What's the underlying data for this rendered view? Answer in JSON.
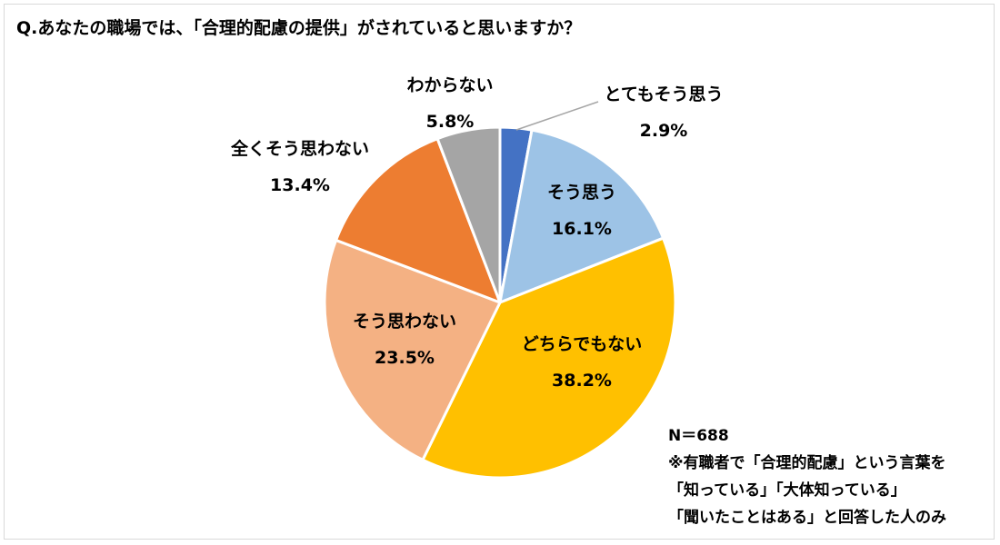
{
  "title": "Q.あなたの職場では、「合理的配慮の提供」がされていると思いますか？",
  "chart_data": {
    "type": "pie",
    "title": "Q.あなたの職場では、「合理的配慮の提供」がされていると思いますか？",
    "slices": [
      {
        "label": "とてもそう思う",
        "value": 2.9,
        "value_label": "2.9%",
        "color": "#4472C4"
      },
      {
        "label": "そう思う",
        "value": 16.1,
        "value_label": "16.1%",
        "color": "#9DC3E6"
      },
      {
        "label": "どちらでもない",
        "value": 38.2,
        "value_label": "38.2%",
        "color": "#FFC000"
      },
      {
        "label": "そう思わない",
        "value": 23.5,
        "value_label": "23.5%",
        "color": "#F4B183"
      },
      {
        "label": "全くそう思わない",
        "value": 13.4,
        "value_label": "13.4%",
        "color": "#ED7D31"
      },
      {
        "label": "わからない",
        "value": 5.8,
        "value_label": "5.8%",
        "color": "#A5A5A5"
      }
    ]
  },
  "note": {
    "n": "N＝688",
    "line1": "※有職者で「合理的配慮」という言葉を",
    "line2": "「知っている」「大体知っている」",
    "line3": "「聞いたことはある」と回答した人のみ"
  }
}
